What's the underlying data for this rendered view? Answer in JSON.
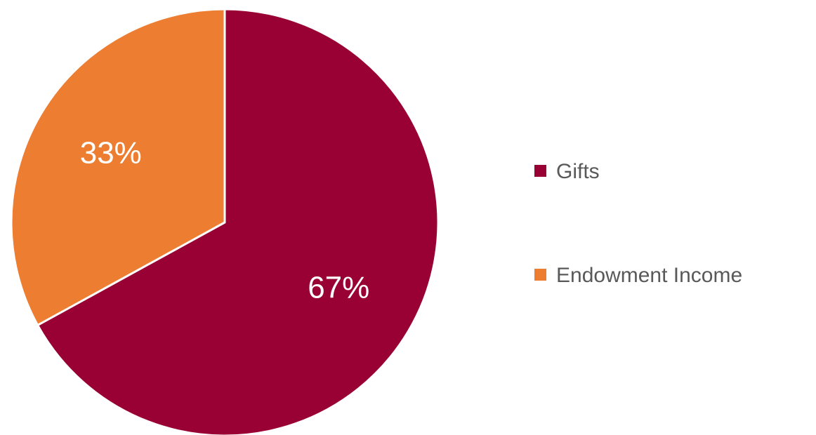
{
  "chart_data": {
    "type": "pie",
    "title": "",
    "slices": [
      {
        "name": "Gifts",
        "value": 67,
        "label": "67%",
        "color": "#990033"
      },
      {
        "name": "Endowment Income",
        "value": 33,
        "label": "33%",
        "color": "#ED7D31"
      }
    ],
    "start_angle_deg": 0,
    "direction": "clockwise",
    "legend": {
      "placement": "right",
      "entries": [
        "Gifts",
        "Endowment Income"
      ]
    }
  }
}
